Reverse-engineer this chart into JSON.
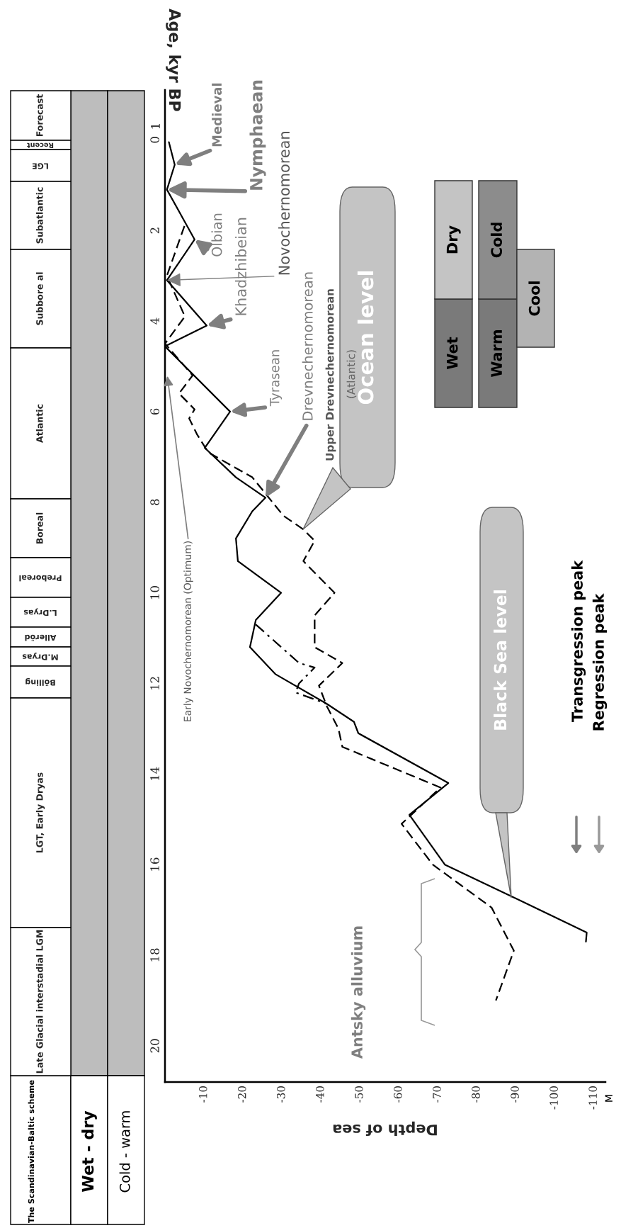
{
  "chart_data": {
    "type": "line",
    "xlabel": "Depth of sea",
    "ylabel": "Age, kyr BP",
    "xlim": [
      0,
      -113
    ],
    "ylim": [
      20.8,
      -1.1
    ],
    "xticks": [
      -10,
      -20,
      -30,
      -40,
      -50,
      -60,
      -70,
      -80,
      -90,
      -100,
      -110
    ],
    "yticks": [
      0,
      2,
      4,
      6,
      8,
      10,
      12,
      14,
      16,
      18,
      20
    ],
    "grid": false,
    "legend": false,
    "series": [
      {
        "color": "#000000",
        "line_style": "solid",
        "x": [
          -1,
          -2.5,
          -0.5,
          -7.6,
          -0.5,
          -10.7,
          0,
          -16.7,
          -10.2,
          -18.2,
          -25.8,
          -22.4,
          -18.2,
          -18.7,
          -29.8,
          -23.3,
          -21.8,
          -28.4,
          -41.5,
          -48.5,
          -49.6,
          -72.7,
          -62.7,
          -71.8,
          -88.9,
          -108.2,
          -108
        ],
        "values": [
          0.05,
          0.55,
          1.1,
          2.2,
          3.1,
          4.1,
          4.56,
          6.0,
          6.8,
          7.45,
          7.9,
          8.2,
          8.8,
          9.3,
          10.0,
          10.6,
          11.2,
          11.8,
          12.45,
          12.85,
          13.1,
          14.2,
          14.9,
          16.0,
          16.7,
          17.5,
          17.7
        ]
      },
      {
        "color": "#000000",
        "line_style": "dashed",
        "x": [
          -5,
          -0.5,
          -5.1,
          0,
          -7.1,
          -3.6,
          -7.6,
          -6.2,
          -8.2,
          -11.1,
          -22.4,
          -30.4,
          -35.5,
          -38.4,
          -35.5,
          -43.5,
          -38.4,
          -38.4,
          -45.5,
          -39.5,
          -41.5,
          -44.5,
          -45.5,
          -70.7,
          -60.7,
          -68.7,
          -83.8,
          -89.5,
          -84.9
        ],
        "values": [
          1.9,
          3.0,
          3.9,
          4.5,
          5.2,
          5.6,
          5.95,
          6.15,
          6.5,
          6.9,
          7.45,
          8.3,
          8.6,
          8.85,
          9.3,
          10.0,
          10.5,
          11.2,
          11.55,
          12.05,
          12.5,
          13.0,
          13.4,
          14.3,
          15.1,
          16.0,
          16.95,
          17.9,
          19.0
        ]
      },
      {
        "color": "#000000",
        "line_style": "dashdot",
        "x": [
          -23.3,
          -34.4,
          -38.4,
          -34.4,
          -33.5,
          -41.5
        ],
        "values": [
          10.7,
          11.55,
          11.65,
          12.0,
          12.2,
          12.45
        ]
      }
    ],
    "annotations": [
      {
        "text": "Medieval",
        "x": -2.5,
        "y": 0.55
      },
      {
        "text": "Nymphaean",
        "x": -0.5,
        "y": 1.1
      },
      {
        "text": "Olbian",
        "x": -7.6,
        "y": 2.2
      },
      {
        "text": "Khadzhibeian",
        "x": -10.7,
        "y": 4.1
      },
      {
        "text": "Novochernomorean",
        "x": -0.5,
        "y": 3.1
      },
      {
        "text": "Tyrasean",
        "x": -16.7,
        "y": 6.0
      },
      {
        "text": "Drevnechernomorean",
        "x": -25.8,
        "y": 7.9
      },
      "Upper Drevnechernomorean",
      "(Atlantic)",
      "Ocean level",
      "Black Sea level",
      "Early Novochernomorean (Optimum)",
      "Antsky alluvium",
      "Transgression peak",
      "Regression peak",
      "M",
      "The Scandinavian-Baltic scheme",
      "Wet - dry",
      "Cold - warm",
      "Wet",
      "Dry",
      "Warm",
      "Cold",
      "Cool",
      "1",
      "Forecast",
      "Recent",
      "LGE",
      "Subatlantic",
      "Subbore al",
      "Atlantic",
      "Boreal",
      "Preboreal",
      "L.Dryas",
      "Alleröd",
      "M.Dryas",
      "Bölling",
      "LGT, Early Dryas",
      "Late Glacial interstadial LGM"
    ]
  }
}
